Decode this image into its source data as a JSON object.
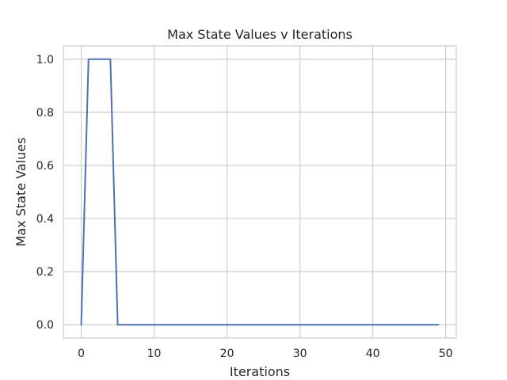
{
  "chart_data": {
    "type": "line",
    "title": "Max State Values v Iterations",
    "xlabel": "Iterations",
    "ylabel": "Max State Values",
    "xlim": [
      -2.45,
      51.45
    ],
    "ylim": [
      -0.05,
      1.05
    ],
    "xticks": [
      0,
      10,
      20,
      30,
      40,
      50
    ],
    "xtick_labels": [
      "0",
      "10",
      "20",
      "30",
      "40",
      "50"
    ],
    "yticks": [
      0.0,
      0.2,
      0.4,
      0.6,
      0.8,
      1.0
    ],
    "ytick_labels": [
      "0.0",
      "0.2",
      "0.4",
      "0.6",
      "0.8",
      "1.0"
    ],
    "grid": true,
    "series": [
      {
        "color": "#4c72b0",
        "x": [
          0,
          1,
          2,
          3,
          4,
          5,
          6,
          7,
          8,
          9,
          10,
          11,
          12,
          13,
          14,
          15,
          16,
          17,
          18,
          19,
          20,
          21,
          22,
          23,
          24,
          25,
          26,
          27,
          28,
          29,
          30,
          31,
          32,
          33,
          34,
          35,
          36,
          37,
          38,
          39,
          40,
          41,
          42,
          43,
          44,
          45,
          46,
          47,
          48,
          49
        ],
        "y": [
          0,
          1,
          1,
          1,
          1,
          0,
          0,
          0,
          0,
          0,
          0,
          0,
          0,
          0,
          0,
          0,
          0,
          0,
          0,
          0,
          0,
          0,
          0,
          0,
          0,
          0,
          0,
          0,
          0,
          0,
          0,
          0,
          0,
          0,
          0,
          0,
          0,
          0,
          0,
          0,
          0,
          0,
          0,
          0,
          0,
          0,
          0,
          0,
          0,
          0
        ]
      }
    ]
  }
}
